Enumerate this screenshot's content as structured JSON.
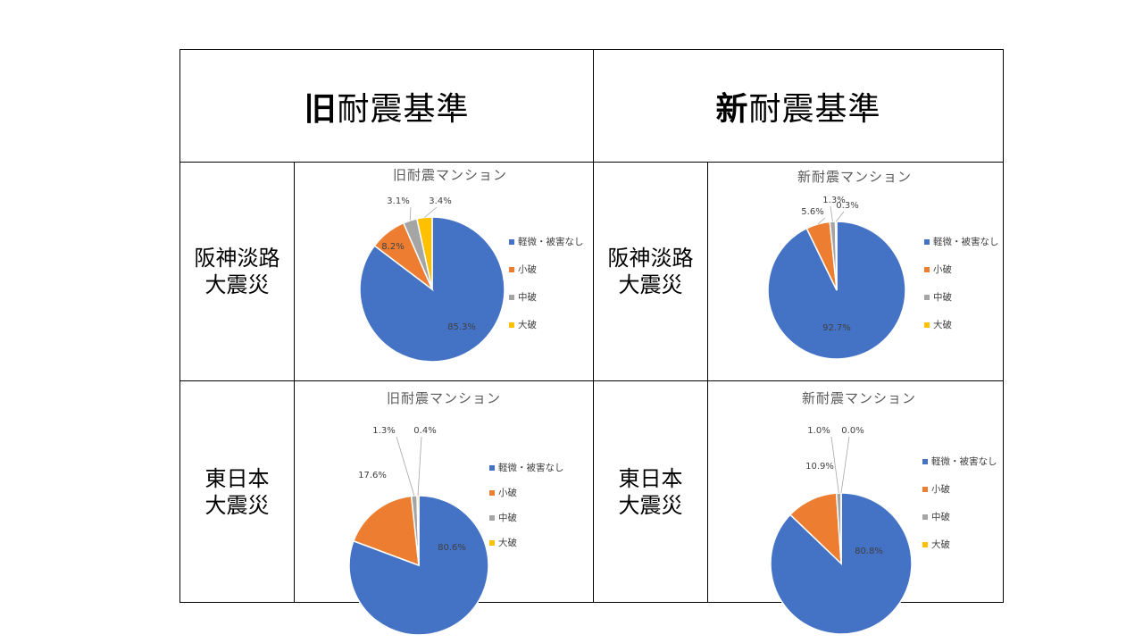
{
  "headers": {
    "old": {
      "bold": "旧",
      "rest": "耐震基準"
    },
    "new": {
      "bold": "新",
      "rest": "耐震基準"
    }
  },
  "rows": [
    {
      "label_line1": "阪神淡路",
      "label_line2": "大震災"
    },
    {
      "label_line1": "東日本",
      "label_line2": "大震災"
    }
  ],
  "colors": {
    "light": "#4472C4",
    "small": "#ED7D31",
    "medium": "#A5A5A5",
    "large": "#FFC000"
  },
  "chart_data": [
    {
      "type": "pie",
      "title": "旧耐震マンション",
      "categories": [
        "軽微・被害なし",
        "小破",
        "中破",
        "大破"
      ],
      "values": [
        85.3,
        8.2,
        3.1,
        3.4
      ],
      "labels": [
        "85.3%",
        "8.2%",
        "3.1%",
        "3.4%"
      ],
      "legend": "right"
    },
    {
      "type": "pie",
      "title": "新耐震マンション",
      "categories": [
        "軽微・被害なし",
        "小破",
        "中破",
        "大破"
      ],
      "values": [
        92.7,
        5.6,
        1.3,
        0.3
      ],
      "labels": [
        "92.7%",
        "5.6%",
        "1.3%",
        "0.3%"
      ],
      "legend": "right"
    },
    {
      "type": "pie",
      "title": "旧耐震マンション",
      "categories": [
        "軽微・被害なし",
        "小破",
        "中破",
        "大破"
      ],
      "values": [
        80.6,
        17.6,
        1.3,
        0.4
      ],
      "labels": [
        "80.6%",
        "17.6%",
        "1.3%",
        "0.4%"
      ],
      "legend": "right"
    },
    {
      "type": "pie",
      "title": "新耐震マンション",
      "categories": [
        "軽微・被害なし",
        "小破",
        "中破",
        "大破"
      ],
      "values": [
        80.8,
        10.9,
        1.0,
        0.0
      ],
      "labels": [
        "80.8%",
        "10.9%",
        "1.0%",
        "0.0%"
      ],
      "legend": "right"
    }
  ]
}
